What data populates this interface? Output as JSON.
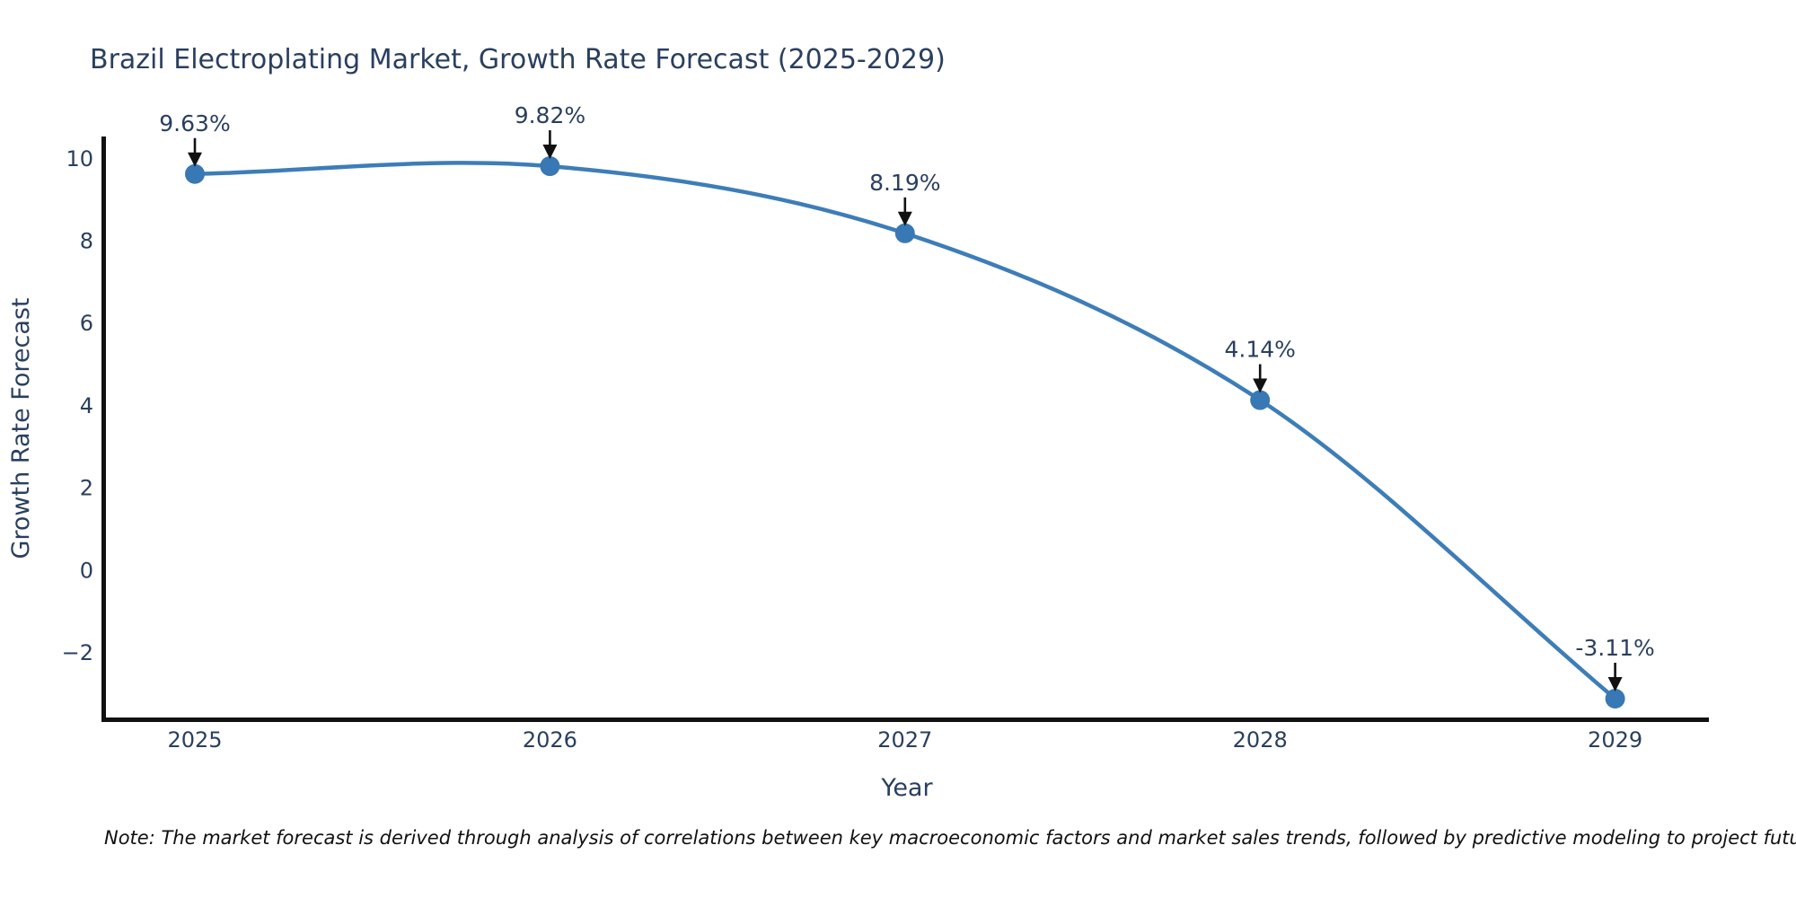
{
  "chart_data": {
    "type": "line",
    "title": "Brazil Electroplating Market, Growth Rate Forecast (2025-2029)",
    "xlabel": "Year",
    "ylabel": "Growth Rate Forecast",
    "categories": [
      2025,
      2026,
      2027,
      2028,
      2029
    ],
    "values": [
      9.63,
      9.82,
      8.19,
      4.14,
      -3.11
    ],
    "point_labels": [
      "9.63%",
      "9.82%",
      "8.19%",
      "4.14%",
      "-3.11%"
    ],
    "y_ticks": [
      10,
      8,
      6,
      4,
      2,
      0,
      -2
    ],
    "ylim": [
      -3.65,
      10.55
    ],
    "grid": false,
    "legend_position": "none",
    "line_color": "#3d7db8",
    "marker_color": "#3878b4",
    "axis_color": "#111111",
    "annotation_arrow_color": "#111111",
    "text_color": "#2a3f5f",
    "note": "Note: The market forecast is derived through analysis of correlations between key macroeconomic factors and market sales trends, followed by predictive modeling to project future sales"
  }
}
